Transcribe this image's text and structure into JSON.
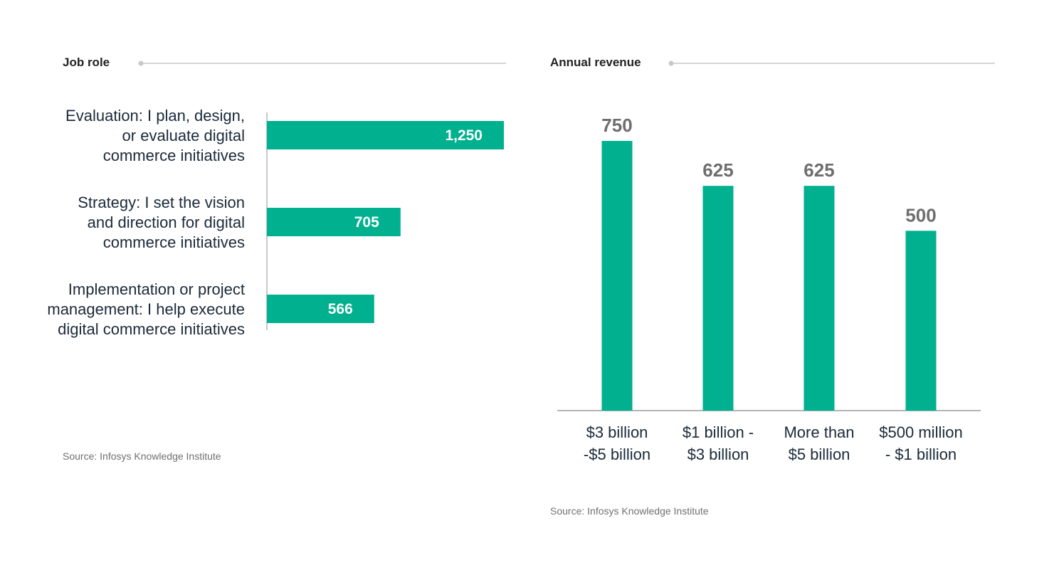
{
  "colors": {
    "bar": "#00b08f",
    "axis": "#b5b5b5",
    "rule": "#c8c8c8"
  },
  "chart_data": [
    {
      "type": "bar",
      "orientation": "horizontal",
      "title": "Job role",
      "categories": [
        [
          "Evaluation: I plan, design,",
          "or evaluate digital",
          "commerce initiatives"
        ],
        [
          "Strategy: I set the vision",
          "and direction for digital",
          "commerce initiatives"
        ],
        [
          "Implementation or project",
          "management: I help execute",
          "digital commerce initiatives"
        ]
      ],
      "values": [
        1250,
        705,
        566
      ],
      "value_labels": [
        "1,250",
        "705",
        "566"
      ],
      "xlim": [
        0,
        1250
      ],
      "grid": false,
      "source": "Source: Infosys Knowledge Institute"
    },
    {
      "type": "bar",
      "orientation": "vertical",
      "title": "Annual revenue",
      "categories": [
        [
          "$3 billion",
          "-$5 billion"
        ],
        [
          "$1 billion -",
          "$3 billion"
        ],
        [
          "More than",
          "$5 billion"
        ],
        [
          "$500 million",
          "- $1 billion"
        ]
      ],
      "values": [
        750,
        625,
        625,
        500
      ],
      "value_labels": [
        "750",
        "625",
        "625",
        "500"
      ],
      "ylim": [
        0,
        750
      ],
      "grid": false,
      "source": "Source: Infosys Knowledge Institute"
    }
  ]
}
